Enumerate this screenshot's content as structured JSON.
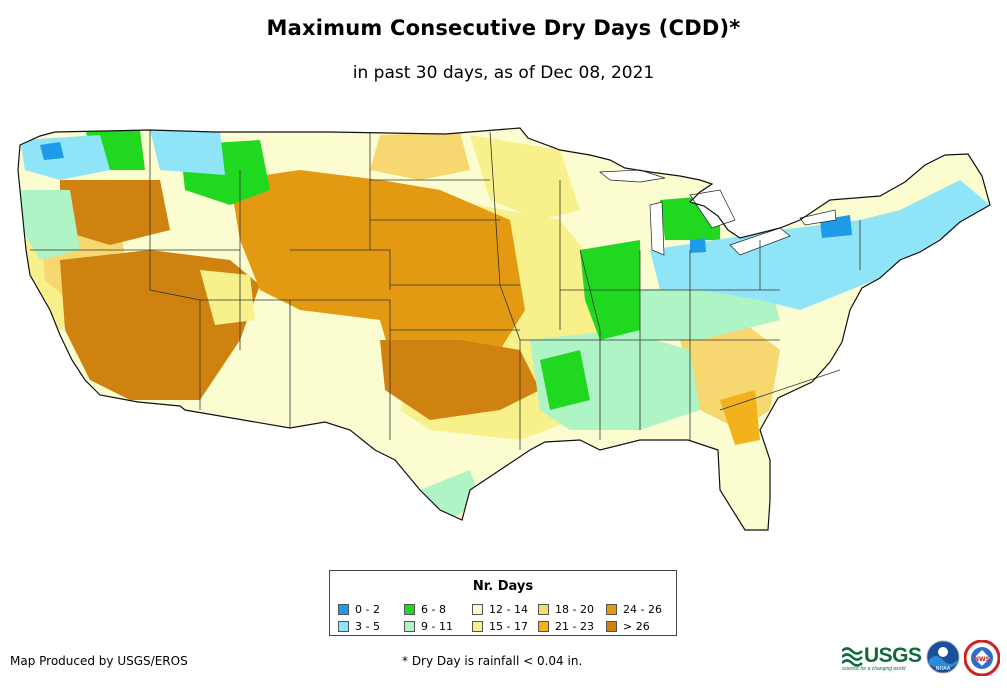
{
  "title": "Maximum Consecutive Dry Days (CDD)*",
  "subtitle": "in past 30 days, as of Dec 08, 2021",
  "legend": {
    "title": "Nr. Days",
    "items": [
      {
        "label": "0 - 2",
        "color": "#1e9be6"
      },
      {
        "label": "3 - 5",
        "color": "#8fe4f7"
      },
      {
        "label": "6 - 8",
        "color": "#20d820"
      },
      {
        "label": "9 - 11",
        "color": "#aef4c4"
      },
      {
        "label": "12 - 14",
        "color": "#fbfcd0"
      },
      {
        "label": "15 - 17",
        "color": "#f8f08a"
      },
      {
        "label": "18 - 20",
        "color": "#f7d770"
      },
      {
        "label": "21 - 23",
        "color": "#f3b21c"
      },
      {
        "label": "24 - 26",
        "color": "#e39a12"
      },
      {
        "label": "> 26",
        "color": "#cf8210"
      }
    ]
  },
  "credit": "Map Produced by USGS/EROS",
  "footnote": "* Dry Day is rainfall < 0.04 in.",
  "logos": {
    "usgs_text": "USGS",
    "usgs_tagline": "science for a changing world",
    "noaa_text": "NOAA",
    "nws_text": "NWS"
  }
}
